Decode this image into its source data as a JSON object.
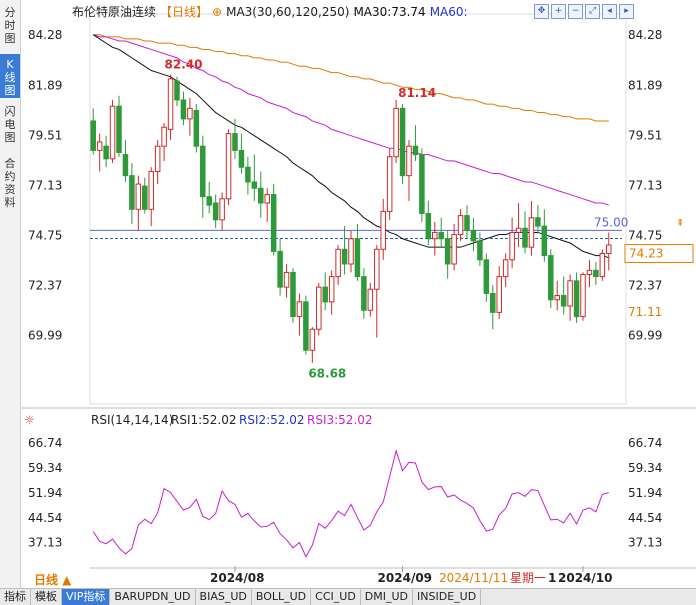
{
  "sidebar": {
    "items": [
      {
        "label": "分时图",
        "active": false
      },
      {
        "label": "K线图",
        "active": true
      },
      {
        "label": "闪电图",
        "active": false
      },
      {
        "label": "合约资料",
        "active": false
      }
    ]
  },
  "header": {
    "name": "布伦特原油连续",
    "period": "【日线】",
    "add_icon": "⊕",
    "ma_label": "MA3(30,60,120,250)",
    "ma30": "MA30:73.74",
    "ma60": "MA60:"
  },
  "toolbar": {
    "icons": [
      "move-icon",
      "zoom-in-icon",
      "zoom-out-icon",
      "expand-icon",
      "scroll-left-icon",
      "scroll-right-icon"
    ]
  },
  "price_axis": {
    "ticks": [
      "84.28",
      "81.89",
      "79.51",
      "77.13",
      "74.75",
      "72.37",
      "69.99"
    ],
    "current_price": "74.23",
    "bid_price": "71.11"
  },
  "annotations": {
    "high1": "82.40",
    "high2": "81.14",
    "low1": "68.68",
    "hline_label": "75.00"
  },
  "rsi": {
    "title": "RSI(14,14,14)",
    "rsi1": "RSI1:52.02",
    "rsi2": "RSI2:52.02",
    "rsi3": "RSI3:52.02",
    "ticks": [
      "66.74",
      "59.34",
      "51.94",
      "44.54",
      "37.13"
    ]
  },
  "time_axis": {
    "labels": [
      "2024/08",
      "2024/09",
      "2024/10"
    ],
    "cursor_date": "2024/11/11",
    "cursor_weekday": "星期一",
    "cursor_count": "1"
  },
  "period_selector": "日线 ▲",
  "bottom_tabs": [
    {
      "label": "指标",
      "active": false
    },
    {
      "label": "模板",
      "active": false
    },
    {
      "label": "VIP指标",
      "active": true
    },
    {
      "label": "BARUPDN_UD",
      "active": false
    },
    {
      "label": "BIAS_UD",
      "active": false
    },
    {
      "label": "BOLL_UD",
      "active": false
    },
    {
      "label": "CCI_UD",
      "active": false
    },
    {
      "label": "DMI_UD",
      "active": false
    },
    {
      "label": "INSIDE_UD",
      "active": false
    }
  ],
  "colors": {
    "up": "#d12a2a",
    "down": "#2f9a3a",
    "ma30": "#111111",
    "ma60": "#c81fd0",
    "ma120": "#e07b00",
    "rsi": "#c81fd0",
    "price_box": "#e07b00",
    "hline": "#5a66d6"
  },
  "chart_data": {
    "type": "candlestick",
    "price_range": [
      67.6,
      85.0
    ],
    "rsi_range": [
      32,
      70
    ],
    "candles": [
      {
        "o": 80.2,
        "h": 80.8,
        "l": 78.6,
        "c": 78.8
      },
      {
        "o": 78.8,
        "h": 79.6,
        "l": 77.8,
        "c": 79.2
      },
      {
        "o": 79.0,
        "h": 79.5,
        "l": 78.0,
        "c": 78.4
      },
      {
        "o": 78.4,
        "h": 81.2,
        "l": 78.2,
        "c": 80.9
      },
      {
        "o": 80.9,
        "h": 81.4,
        "l": 78.5,
        "c": 78.7
      },
      {
        "o": 78.6,
        "h": 79.3,
        "l": 77.3,
        "c": 77.6
      },
      {
        "o": 77.6,
        "h": 78.2,
        "l": 75.3,
        "c": 76.0
      },
      {
        "o": 76.0,
        "h": 77.6,
        "l": 75.0,
        "c": 77.2
      },
      {
        "o": 77.1,
        "h": 77.5,
        "l": 75.8,
        "c": 76.0
      },
      {
        "o": 76.0,
        "h": 78.0,
        "l": 75.2,
        "c": 77.8
      },
      {
        "o": 77.8,
        "h": 79.3,
        "l": 77.2,
        "c": 79.0
      },
      {
        "o": 79.0,
        "h": 80.1,
        "l": 78.3,
        "c": 79.9
      },
      {
        "o": 79.8,
        "h": 82.4,
        "l": 79.3,
        "c": 82.2
      },
      {
        "o": 82.1,
        "h": 82.3,
        "l": 80.9,
        "c": 81.2
      },
      {
        "o": 81.2,
        "h": 81.6,
        "l": 80.0,
        "c": 80.3
      },
      {
        "o": 80.3,
        "h": 81.3,
        "l": 79.5,
        "c": 80.8
      },
      {
        "o": 80.7,
        "h": 81.0,
        "l": 78.7,
        "c": 79.0
      },
      {
        "o": 79.0,
        "h": 79.5,
        "l": 75.6,
        "c": 76.6
      },
      {
        "o": 76.6,
        "h": 77.3,
        "l": 75.8,
        "c": 76.2
      },
      {
        "o": 76.3,
        "h": 76.7,
        "l": 75.1,
        "c": 75.5
      },
      {
        "o": 75.5,
        "h": 76.8,
        "l": 75.0,
        "c": 76.5
      },
      {
        "o": 76.5,
        "h": 79.8,
        "l": 76.2,
        "c": 79.6
      },
      {
        "o": 79.6,
        "h": 80.3,
        "l": 78.4,
        "c": 78.8
      },
      {
        "o": 78.8,
        "h": 79.6,
        "l": 77.7,
        "c": 78.0
      },
      {
        "o": 78.0,
        "h": 78.5,
        "l": 76.7,
        "c": 77.3
      },
      {
        "o": 77.3,
        "h": 78.6,
        "l": 76.4,
        "c": 77.0
      },
      {
        "o": 77.0,
        "h": 77.8,
        "l": 75.6,
        "c": 76.3
      },
      {
        "o": 76.3,
        "h": 77.0,
        "l": 75.4,
        "c": 76.7
      },
      {
        "o": 76.7,
        "h": 77.2,
        "l": 73.8,
        "c": 74.0
      },
      {
        "o": 74.0,
        "h": 74.6,
        "l": 71.9,
        "c": 72.3
      },
      {
        "o": 72.3,
        "h": 73.4,
        "l": 71.8,
        "c": 73.0
      },
      {
        "o": 73.0,
        "h": 73.2,
        "l": 70.6,
        "c": 70.9
      },
      {
        "o": 70.9,
        "h": 72.0,
        "l": 70.0,
        "c": 71.6
      },
      {
        "o": 71.6,
        "h": 71.9,
        "l": 69.1,
        "c": 69.3
      },
      {
        "o": 69.3,
        "h": 70.4,
        "l": 68.7,
        "c": 70.3
      },
      {
        "o": 70.3,
        "h": 72.5,
        "l": 70.0,
        "c": 72.3
      },
      {
        "o": 72.3,
        "h": 73.0,
        "l": 71.2,
        "c": 71.6
      },
      {
        "o": 71.6,
        "h": 73.1,
        "l": 71.0,
        "c": 72.8
      },
      {
        "o": 72.8,
        "h": 74.3,
        "l": 72.4,
        "c": 74.1
      },
      {
        "o": 74.1,
        "h": 75.2,
        "l": 72.9,
        "c": 73.4
      },
      {
        "o": 73.4,
        "h": 75.0,
        "l": 73.0,
        "c": 74.6
      },
      {
        "o": 74.6,
        "h": 75.3,
        "l": 72.6,
        "c": 72.8
      },
      {
        "o": 72.8,
        "h": 73.2,
        "l": 70.8,
        "c": 71.2
      },
      {
        "o": 71.2,
        "h": 72.5,
        "l": 70.9,
        "c": 72.2
      },
      {
        "o": 72.2,
        "h": 74.3,
        "l": 69.9,
        "c": 74.1
      },
      {
        "o": 74.1,
        "h": 76.5,
        "l": 73.6,
        "c": 75.9
      },
      {
        "o": 75.9,
        "h": 78.9,
        "l": 75.5,
        "c": 78.5
      },
      {
        "o": 78.5,
        "h": 81.2,
        "l": 78.2,
        "c": 80.8
      },
      {
        "o": 80.8,
        "h": 81.0,
        "l": 77.2,
        "c": 77.6
      },
      {
        "o": 77.6,
        "h": 79.3,
        "l": 76.4,
        "c": 79.0
      },
      {
        "o": 79.0,
        "h": 80.0,
        "l": 78.3,
        "c": 78.6
      },
      {
        "o": 78.6,
        "h": 78.9,
        "l": 75.4,
        "c": 75.8
      },
      {
        "o": 75.8,
        "h": 76.4,
        "l": 74.3,
        "c": 74.6
      },
      {
        "o": 74.6,
        "h": 75.4,
        "l": 73.8,
        "c": 74.9
      },
      {
        "o": 74.9,
        "h": 75.6,
        "l": 74.2,
        "c": 74.6
      },
      {
        "o": 74.6,
        "h": 75.0,
        "l": 72.7,
        "c": 73.4
      },
      {
        "o": 73.4,
        "h": 75.3,
        "l": 73.1,
        "c": 74.8
      },
      {
        "o": 74.8,
        "h": 76.0,
        "l": 74.5,
        "c": 75.7
      },
      {
        "o": 75.7,
        "h": 76.2,
        "l": 74.6,
        "c": 75.0
      },
      {
        "o": 75.0,
        "h": 75.6,
        "l": 74.0,
        "c": 74.5
      },
      {
        "o": 74.5,
        "h": 74.9,
        "l": 73.3,
        "c": 73.6
      },
      {
        "o": 73.6,
        "h": 73.9,
        "l": 71.6,
        "c": 72.0
      },
      {
        "o": 72.0,
        "h": 72.4,
        "l": 70.3,
        "c": 71.1
      },
      {
        "o": 71.1,
        "h": 73.3,
        "l": 70.8,
        "c": 72.8
      },
      {
        "o": 72.8,
        "h": 73.9,
        "l": 72.3,
        "c": 73.6
      },
      {
        "o": 73.6,
        "h": 75.6,
        "l": 73.2,
        "c": 74.9
      },
      {
        "o": 74.9,
        "h": 76.3,
        "l": 74.2,
        "c": 75.1
      },
      {
        "o": 75.1,
        "h": 75.9,
        "l": 73.9,
        "c": 74.2
      },
      {
        "o": 74.2,
        "h": 76.4,
        "l": 73.8,
        "c": 75.6
      },
      {
        "o": 75.6,
        "h": 76.2,
        "l": 74.9,
        "c": 75.2
      },
      {
        "o": 75.2,
        "h": 76.0,
        "l": 73.5,
        "c": 73.8
      },
      {
        "o": 73.8,
        "h": 74.1,
        "l": 71.3,
        "c": 71.7
      },
      {
        "o": 71.7,
        "h": 72.6,
        "l": 71.2,
        "c": 71.9
      },
      {
        "o": 71.9,
        "h": 72.8,
        "l": 71.0,
        "c": 71.4
      },
      {
        "o": 71.4,
        "h": 72.9,
        "l": 70.7,
        "c": 72.6
      },
      {
        "o": 72.6,
        "h": 73.0,
        "l": 70.6,
        "c": 70.9
      },
      {
        "o": 70.9,
        "h": 73.0,
        "l": 70.7,
        "c": 72.9
      },
      {
        "o": 72.9,
        "h": 73.6,
        "l": 72.3,
        "c": 73.1
      },
      {
        "o": 73.1,
        "h": 73.5,
        "l": 72.4,
        "c": 72.8
      },
      {
        "o": 72.8,
        "h": 74.1,
        "l": 72.6,
        "c": 73.9
      },
      {
        "o": 73.9,
        "h": 74.9,
        "l": 73.1,
        "c": 74.3
      }
    ],
    "ma30": [
      84.3,
      84.1,
      83.9,
      83.7,
      83.6,
      83.4,
      83.2,
      83.0,
      82.8,
      82.6,
      82.5,
      82.4,
      82.3,
      82.1,
      81.9,
      81.7,
      81.5,
      81.2,
      80.9,
      80.6,
      80.4,
      80.2,
      80.0,
      79.9,
      79.7,
      79.5,
      79.3,
      79.1,
      78.9,
      78.7,
      78.5,
      78.2,
      78.0,
      77.8,
      77.6,
      77.3,
      77.1,
      76.8,
      76.6,
      76.4,
      76.1,
      75.9,
      75.6,
      75.4,
      75.2,
      75.1,
      74.9,
      74.8,
      74.6,
      74.5,
      74.4,
      74.3,
      74.2,
      74.2,
      74.2,
      74.2,
      74.2,
      74.2,
      74.3,
      74.4,
      74.5,
      74.6,
      74.7,
      74.8,
      74.8,
      74.9,
      74.9,
      74.9,
      74.9,
      74.9,
      74.8,
      74.7,
      74.6,
      74.5,
      74.4,
      74.2,
      74.0,
      73.9,
      73.8,
      73.8,
      73.7
    ],
    "ma60": [
      84.3,
      84.2,
      84.2,
      84.1,
      84.0,
      84.0,
      83.9,
      83.8,
      83.7,
      83.6,
      83.5,
      83.4,
      83.3,
      83.2,
      83.0,
      82.9,
      82.7,
      82.6,
      82.4,
      82.3,
      82.1,
      82.0,
      81.8,
      81.7,
      81.5,
      81.4,
      81.3,
      81.1,
      81.0,
      80.9,
      80.8,
      80.6,
      80.5,
      80.4,
      80.2,
      80.1,
      80.0,
      79.8,
      79.7,
      79.6,
      79.5,
      79.4,
      79.3,
      79.2,
      79.1,
      79.0,
      78.9,
      78.9,
      78.8,
      78.7,
      78.7,
      78.6,
      78.6,
      78.5,
      78.4,
      78.3,
      78.3,
      78.2,
      78.1,
      78.0,
      77.9,
      77.8,
      77.7,
      77.7,
      77.6,
      77.5,
      77.4,
      77.3,
      77.3,
      77.2,
      77.1,
      77.0,
      76.9,
      76.8,
      76.7,
      76.6,
      76.5,
      76.4,
      76.3,
      76.3,
      76.2
    ],
    "ma120": [
      84.3,
      84.3,
      84.2,
      84.2,
      84.2,
      84.1,
      84.1,
      84.1,
      84.0,
      84.0,
      83.9,
      83.9,
      83.9,
      83.8,
      83.8,
      83.7,
      83.7,
      83.6,
      83.6,
      83.5,
      83.5,
      83.4,
      83.4,
      83.3,
      83.3,
      83.2,
      83.2,
      83.1,
      83.1,
      83.0,
      83.0,
      82.9,
      82.8,
      82.8,
      82.7,
      82.7,
      82.6,
      82.5,
      82.5,
      82.4,
      82.3,
      82.3,
      82.2,
      82.2,
      82.1,
      82.0,
      82.0,
      81.9,
      81.8,
      81.8,
      81.7,
      81.7,
      81.6,
      81.5,
      81.5,
      81.4,
      81.3,
      81.3,
      81.2,
      81.2,
      81.1,
      81.0,
      81.0,
      80.9,
      80.9,
      80.8,
      80.8,
      80.7,
      80.7,
      80.6,
      80.6,
      80.5,
      80.5,
      80.4,
      80.4,
      80.3,
      80.3,
      80.3,
      80.2,
      80.2,
      80.2
    ],
    "rsi": [
      40.5,
      37.5,
      36.8,
      38.2,
      35.6,
      33.8,
      35.4,
      42.4,
      44.1,
      42.8,
      46.0,
      53.2,
      52.0,
      49.4,
      46.8,
      47.6,
      50.0,
      45.0,
      44.0,
      45.8,
      52.5,
      49.6,
      48.5,
      44.7,
      45.8,
      43.6,
      41.8,
      42.0,
      43.2,
      39.8,
      38.0,
      35.6,
      37.2,
      33.0,
      36.4,
      42.8,
      41.4,
      43.7,
      46.5,
      45.2,
      48.5,
      44.6,
      40.9,
      42.3,
      46.3,
      49.2,
      56.8,
      64.4,
      58.5,
      61.0,
      60.8,
      55.2,
      52.9,
      53.7,
      53.8,
      50.7,
      51.3,
      49.8,
      48.8,
      47.4,
      43.7,
      40.6,
      41.1,
      45.4,
      47.3,
      51.6,
      52.0,
      50.9,
      52.9,
      52.6,
      48.2,
      43.9,
      44.1,
      43.0,
      45.9,
      42.7,
      46.8,
      47.5,
      46.3,
      51.5,
      52.0
    ]
  }
}
